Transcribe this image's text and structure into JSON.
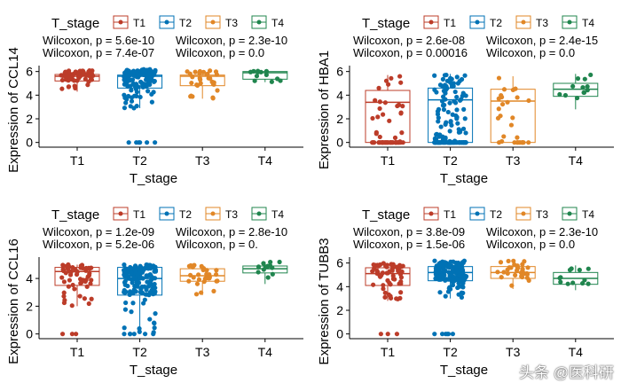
{
  "watermark": "头条 @医科研",
  "chart_data": [
    {
      "type": "boxplot",
      "ylabel": "Expression of CCL14",
      "xlabel": "T_stage",
      "legend_title": "T_stage",
      "legend_position": "top",
      "categories": [
        "T1",
        "T2",
        "T3",
        "T4"
      ],
      "yticks": [
        0,
        2,
        4,
        6
      ],
      "ylim": [
        -0.4,
        6.5
      ],
      "boxes": [
        {
          "q1": 5.2,
          "median": 5.6,
          "q3": 5.75,
          "low": 4.3,
          "high": 6.1
        },
        {
          "q1": 4.6,
          "median": 5.6,
          "q3": 5.7,
          "low": 2.9,
          "high": 6.2
        },
        {
          "q1": 4.8,
          "median": 5.6,
          "q3": 5.7,
          "low": 3.7,
          "high": 6.1
        },
        {
          "q1": 5.35,
          "median": 5.9,
          "q3": 6.0,
          "low": 5.1,
          "high": 6.1
        }
      ],
      "annotations": [
        "Wilcoxon, p = 5.6e-10",
        "Wilcoxon, p = 2.3e-10",
        "Wilcoxon, p = 7.4e-07",
        "Wilcoxon, p = 0.0"
      ]
    },
    {
      "type": "boxplot",
      "ylabel": "Expression of HBA1",
      "xlabel": "T_stage",
      "legend_title": "T_stage",
      "legend_position": "top",
      "categories": [
        "T1",
        "T2",
        "T3",
        "T4"
      ],
      "yticks": [
        0,
        2,
        4,
        6
      ],
      "ylim": [
        -0.4,
        6.5
      ],
      "boxes": [
        {
          "q1": 0,
          "median": 3.4,
          "q3": 4.4,
          "low": 0,
          "high": 5.7
        },
        {
          "q1": 0,
          "median": 3.6,
          "q3": 4.6,
          "low": 0,
          "high": 5.8
        },
        {
          "q1": 0,
          "median": 3.5,
          "q3": 4.5,
          "low": 0,
          "high": 5.6
        },
        {
          "q1": 3.9,
          "median": 4.5,
          "q3": 5.0,
          "low": 2.8,
          "high": 5.8
        }
      ],
      "annotations": [
        "Wilcoxon, p = 2.6e-08",
        "Wilcoxon, p = 2.4e-15",
        "Wilcoxon, p = 0.00016",
        "Wilcoxon, p = 0.0"
      ]
    },
    {
      "type": "boxplot",
      "ylabel": "Expression of CCL16",
      "xlabel": "T_stage",
      "legend_title": "T_stage",
      "legend_position": "top",
      "categories": [
        "T1",
        "T2",
        "T3",
        "T4"
      ],
      "yticks": [
        0,
        2,
        4
      ],
      "ylim": [
        -0.34,
        5.54
      ],
      "boxes": [
        {
          "q1": 3.5,
          "median": 4.5,
          "q3": 4.8,
          "low": 2.0,
          "high": 5.0
        },
        {
          "q1": 2.8,
          "median": 4.0,
          "q3": 4.8,
          "low": 0,
          "high": 5.0
        },
        {
          "q1": 3.8,
          "median": 4.2,
          "q3": 4.7,
          "low": 2.8,
          "high": 5.0
        },
        {
          "q1": 4.4,
          "median": 4.7,
          "q3": 4.9,
          "low": 3.6,
          "high": 5.2
        }
      ],
      "annotations": [
        "Wilcoxon, p = 1.2e-09",
        "Wilcoxon, p = 2.8e-10",
        "Wilcoxon, p = 5.2e-06",
        "Wilcoxon, p = 0."
      ]
    },
    {
      "type": "boxplot",
      "ylabel": "Expression of TUBB3",
      "xlabel": "T_stage",
      "legend_title": "T_stage",
      "legend_position": "top",
      "categories": [
        "T1",
        "T2",
        "T3",
        "T4"
      ],
      "yticks": [
        0,
        2,
        4,
        6
      ],
      "ylim": [
        -0.4,
        6.5
      ],
      "boxes": [
        {
          "q1": 4.1,
          "median": 5.1,
          "q3": 5.6,
          "low": 2.8,
          "high": 6.0
        },
        {
          "q1": 4.5,
          "median": 5.2,
          "q3": 5.7,
          "low": 3.0,
          "high": 6.2
        },
        {
          "q1": 4.7,
          "median": 5.2,
          "q3": 5.7,
          "low": 3.8,
          "high": 6.2
        },
        {
          "q1": 4.2,
          "median": 4.7,
          "q3": 5.2,
          "low": 3.7,
          "high": 5.8
        }
      ],
      "annotations": [
        "Wilcoxon, p = 3.8e-09",
        "Wilcoxon, p = 2.3e-10",
        "Wilcoxon, p = 1.5e-06",
        "Wilcoxon, p = 0.0"
      ]
    }
  ],
  "colors": {
    "T1": "#bc3c29",
    "T2": "#0072b5",
    "T3": "#e18727",
    "T4": "#20854e"
  }
}
